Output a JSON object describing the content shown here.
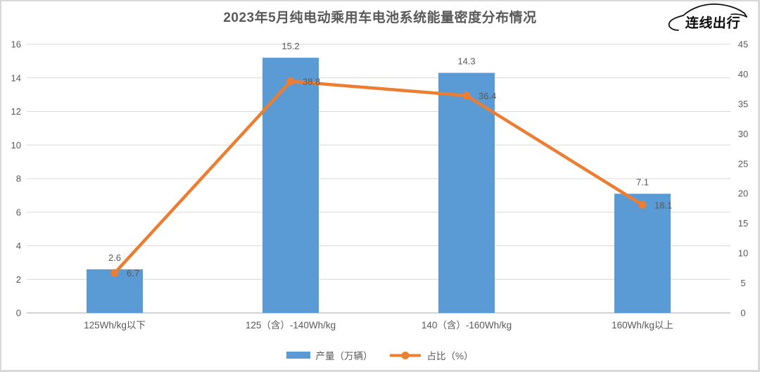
{
  "logo": {
    "text": "连线出行"
  },
  "chart_data": {
    "type": "combo-bar-line",
    "title": "2023年5月纯电动乘用车电池系统能量密度分布情况",
    "categories": [
      "125Wh/kg以下",
      "125（含）-140Wh/kg",
      "140（含）-160Wh/kg",
      "160Wh/kg以上"
    ],
    "series": [
      {
        "name": "产量（万辆）",
        "type": "bar",
        "axis": "left",
        "color": "#5B9BD5",
        "values": [
          2.6,
          15.2,
          14.3,
          7.1
        ]
      },
      {
        "name": "占比（%）",
        "type": "line",
        "axis": "right",
        "color": "#ED7D31",
        "values": [
          6.7,
          38.8,
          36.4,
          18.1
        ]
      }
    ],
    "left_axis": {
      "min": 0,
      "max": 16,
      "step": 2,
      "ticks": [
        0,
        2,
        4,
        6,
        8,
        10,
        12,
        14,
        16
      ]
    },
    "right_axis": {
      "min": 0,
      "max": 45,
      "step": 5,
      "ticks": [
        0,
        5,
        10,
        15,
        20,
        25,
        30,
        35,
        40,
        45
      ]
    },
    "grid": true,
    "legend_position": "bottom",
    "colors": {
      "bar": "#5B9BD5",
      "line": "#ED7D31",
      "gridline": "#d9d9d9",
      "axis_text": "#595959",
      "title_text": "#595959",
      "frame_border": "#d9d9d9"
    }
  }
}
